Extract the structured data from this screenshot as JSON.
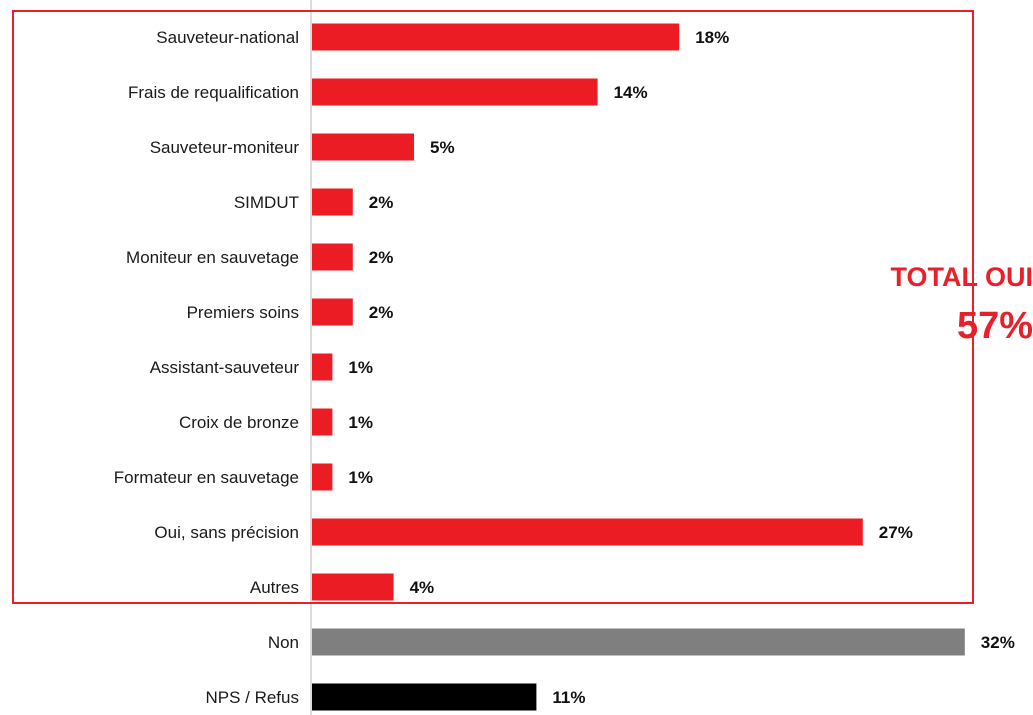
{
  "chart_data": {
    "type": "bar",
    "orientation": "horizontal",
    "categories": [
      "Sauveteur-national",
      "Frais de requalification",
      "Sauveteur-moniteur",
      "SIMDUT",
      "Moniteur en sauvetage",
      "Premiers soins",
      "Assistant-sauveteur",
      "Croix de bronze",
      "Formateur en sauvetage",
      "Oui, sans précision",
      "Autres",
      "Non",
      "NPS / Refus"
    ],
    "values": [
      18,
      14,
      5,
      2,
      2,
      2,
      1,
      1,
      1,
      27,
      4,
      32,
      11
    ],
    "value_labels": [
      "18%",
      "14%",
      "5%",
      "2%",
      "2%",
      "2%",
      "1%",
      "1%",
      "1%",
      "27%",
      "4%",
      "32%",
      "11%"
    ],
    "bar_colors": [
      "#ec1c24",
      "#ec1c24",
      "#ec1c24",
      "#ec1c24",
      "#ec1c24",
      "#ec1c24",
      "#ec1c24",
      "#ec1c24",
      "#ec1c24",
      "#ec1c24",
      "#ec1c24",
      "#7f7f7f",
      "#000000"
    ],
    "unit": "%",
    "xlim": [
      0,
      32
    ],
    "grid": false,
    "legend": "none",
    "group_annotation": {
      "title": "TOTAL OUI",
      "value": "57%",
      "color": "#e8202a",
      "covers_categories": [
        0,
        10
      ]
    }
  }
}
